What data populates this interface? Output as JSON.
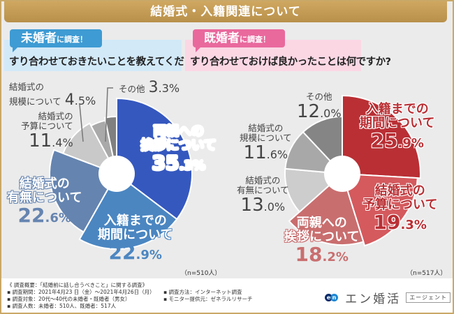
{
  "header": {
    "title": "結婚式・入籍関連について"
  },
  "left_panel": {
    "tag_main": "未婚者",
    "tag_sub": "に調査！",
    "question": "すり合わせておきたいことを教えてください",
    "sample": "（n=510人）"
  },
  "right_panel": {
    "tag_main": "既婚者",
    "tag_sub": "に調査！",
    "question": "すり合わせておけば良かったことは何ですか?",
    "sample": "（n=517人）"
  },
  "chart_data": [
    {
      "type": "pie",
      "title": "未婚者 すり合わせておきたいこと",
      "series": [
        {
          "name": "両親への挨拶について",
          "name_l1": "両親への",
          "name_l2": "挨拶について",
          "value": 35.3,
          "pct_int": "35",
          "pct_dec": ".3%",
          "color": "#3558bf"
        },
        {
          "name": "入籍までの期間について",
          "name_l1": "入籍までの",
          "name_l2": "期間について",
          "value": 22.9,
          "pct_int": "22",
          "pct_dec": ".9%",
          "color": "#4b86c1"
        },
        {
          "name": "結婚式の有無について",
          "name_l1": "結婚式の",
          "name_l2": "有無について",
          "value": 22.6,
          "pct_int": "22",
          "pct_dec": ".6%",
          "color": "#6584b0"
        },
        {
          "name": "結婚式の予算について",
          "name_l1": "結婚式の",
          "name_l2": "予算について",
          "value": 11.4,
          "pct_int": "11",
          "pct_dec": ".4%",
          "color": "#c9c9c9"
        },
        {
          "name": "結婚式の規模について",
          "name_l1": "結婚式の",
          "name_l2": "規模について",
          "value": 4.5,
          "pct_int": "4",
          "pct_dec": ".5%",
          "color": "#a9a9a9"
        },
        {
          "name": "その他",
          "name_l1": "その他",
          "value": 3.3,
          "pct_int": "3",
          "pct_dec": ".3%",
          "color": "#808080"
        }
      ]
    },
    {
      "type": "pie",
      "title": "既婚者 すり合わせておけば良かったこと",
      "series": [
        {
          "name": "入籍までの期間について",
          "name_l1": "入籍までの",
          "name_l2": "期間について",
          "value": 25.9,
          "pct_int": "25",
          "pct_dec": ".9%",
          "color": "#b92f34"
        },
        {
          "name": "結婚式の予算について",
          "name_l1": "結婚式の",
          "name_l2": "予算について",
          "value": 19.3,
          "pct_int": "19",
          "pct_dec": ".3%",
          "color": "#d45a5e"
        },
        {
          "name": "両親への挨拶について",
          "name_l1": "両親への",
          "name_l2": "挨拶について",
          "value": 18.2,
          "pct_int": "18",
          "pct_dec": ".2%",
          "color": "#c96e6f"
        },
        {
          "name": "結婚式の有無について",
          "name_l1": "結婚式の",
          "name_l2": "有無について",
          "value": 13.0,
          "pct_int": "13",
          "pct_dec": ".0%",
          "color": "#cdcdcd"
        },
        {
          "name": "結婚式の規模について",
          "name_l1": "結婚式の",
          "name_l2": "規模について",
          "value": 11.6,
          "pct_int": "11",
          "pct_dec": ".6%",
          "color": "#a8a8a8"
        },
        {
          "name": "その他",
          "name_l1": "その他",
          "value": 12.0,
          "pct_int": "12",
          "pct_dec": ".0%",
          "color": "#858585"
        }
      ]
    }
  ],
  "footer": {
    "notes": [
      "《 調査概要：「結婚前に話し合うべきこと」に関する調査》",
      "▪ 調査期間：2021年4月23 日（金）～2021年4月26日（月）",
      "▪ 調査対象：20代～40代の未婚者・既婚者（男女）",
      "▪ 調査人数：未婚者：510人、既婚者：517人"
    ],
    "notes_right": [
      "▪ 調査方法：インターネット調査",
      "▪ モニター提供元：ゼネラルリサーチ"
    ],
    "logo": {
      "mark_e": "e",
      "mark_n": "n",
      "brand": "エン婚活",
      "agent": "エージェント"
    }
  }
}
